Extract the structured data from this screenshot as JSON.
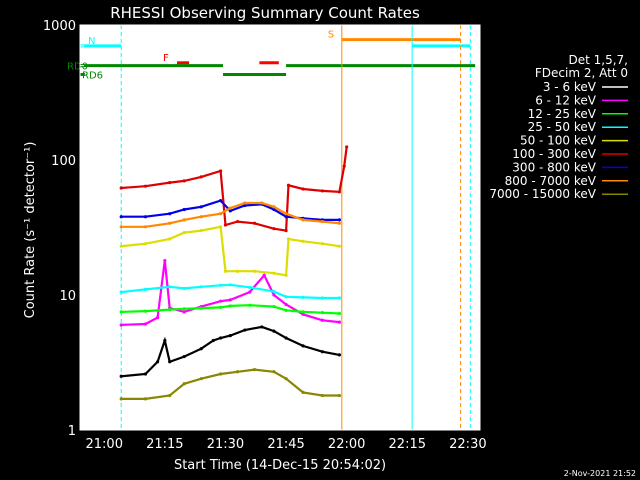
{
  "chart_data": {
    "type": "line",
    "title": "RHESSI Observing Summary Count Rates",
    "xlabel": "Start Time (14-Dec-15 20:54:02)",
    "ylabel": "Count Rate (s⁻¹ detector⁻¹)",
    "yscale": "log",
    "ylim": [
      1,
      1000
    ],
    "xlim_minutes": [
      20.9,
      22.55
    ],
    "x_ticks": [
      {
        "t": 21.0,
        "label": "21:00"
      },
      {
        "t": 21.25,
        "label": "21:15"
      },
      {
        "t": 21.5,
        "label": "21:30"
      },
      {
        "t": 21.75,
        "label": "21:45"
      },
      {
        "t": 22.0,
        "label": "22:00"
      },
      {
        "t": 22.25,
        "label": "22:15"
      },
      {
        "t": 22.5,
        "label": "22:30"
      }
    ],
    "y_ticks": [
      {
        "v": 1,
        "label": "1"
      },
      {
        "v": 10,
        "label": "10"
      },
      {
        "v": 100,
        "label": "100"
      },
      {
        "v": 1000,
        "label": "1000"
      }
    ],
    "legend": {
      "placement": "right",
      "header": [
        "Det 1,5,7,",
        "FDecim 2, Att 0"
      ],
      "entries": [
        {
          "label": "3 - 6 keV",
          "color": "#000000"
        },
        {
          "label": "6 - 12 keV",
          "color": "#ff00ff"
        },
        {
          "label": "12 - 25 keV",
          "color": "#00ff00"
        },
        {
          "label": "25 - 50 keV",
          "color": "#00ffff"
        },
        {
          "label": "50 - 100 keV",
          "color": "#dddd00"
        },
        {
          "label": "100 - 300 keV",
          "color": "#dd0000"
        },
        {
          "label": "300 - 800 keV",
          "color": "#0000ee"
        },
        {
          "label": "800 - 7000 keV",
          "color": "#ff8800"
        },
        {
          "label": "7000 - 15000 keV",
          "color": "#888800"
        }
      ]
    },
    "series": [
      {
        "name": "3 - 6 keV",
        "color": "#000000",
        "points": [
          [
            21.07,
            2.5
          ],
          [
            21.17,
            2.6
          ],
          [
            21.22,
            3.2
          ],
          [
            21.25,
            4.6
          ],
          [
            21.27,
            3.2
          ],
          [
            21.33,
            3.5
          ],
          [
            21.4,
            4.0
          ],
          [
            21.45,
            4.6
          ],
          [
            21.48,
            4.8
          ],
          [
            21.52,
            5.0
          ],
          [
            21.58,
            5.5
          ],
          [
            21.65,
            5.8
          ],
          [
            21.7,
            5.4
          ],
          [
            21.75,
            4.8
          ],
          [
            21.82,
            4.2
          ],
          [
            21.9,
            3.8
          ],
          [
            21.97,
            3.6
          ]
        ]
      },
      {
        "name": "6 - 12 keV",
        "color": "#ff00ff",
        "points": [
          [
            21.07,
            6.0
          ],
          [
            21.17,
            6.1
          ],
          [
            21.22,
            6.8
          ],
          [
            21.25,
            18
          ],
          [
            21.27,
            8.0
          ],
          [
            21.33,
            7.5
          ],
          [
            21.4,
            8.2
          ],
          [
            21.48,
            9.0
          ],
          [
            21.52,
            9.2
          ],
          [
            21.6,
            10.5
          ],
          [
            21.66,
            14
          ],
          [
            21.7,
            10.0
          ],
          [
            21.75,
            8.5
          ],
          [
            21.82,
            7.2
          ],
          [
            21.9,
            6.5
          ],
          [
            21.97,
            6.3
          ]
        ]
      },
      {
        "name": "12 - 25 keV",
        "color": "#00ff00",
        "points": [
          [
            21.07,
            7.5
          ],
          [
            21.17,
            7.6
          ],
          [
            21.27,
            7.8
          ],
          [
            21.33,
            7.9
          ],
          [
            21.4,
            8.0
          ],
          [
            21.48,
            8.1
          ],
          [
            21.52,
            8.3
          ],
          [
            21.6,
            8.4
          ],
          [
            21.7,
            8.2
          ],
          [
            21.75,
            7.7
          ],
          [
            21.82,
            7.5
          ],
          [
            21.9,
            7.4
          ],
          [
            21.97,
            7.3
          ]
        ]
      },
      {
        "name": "25 - 50 keV",
        "color": "#00ffff",
        "points": [
          [
            21.07,
            10.5
          ],
          [
            21.17,
            11.0
          ],
          [
            21.27,
            11.5
          ],
          [
            21.33,
            11.2
          ],
          [
            21.4,
            11.5
          ],
          [
            21.48,
            11.8
          ],
          [
            21.52,
            11.9
          ],
          [
            21.6,
            11.4
          ],
          [
            21.7,
            10.6
          ],
          [
            21.75,
            9.7
          ],
          [
            21.82,
            9.6
          ],
          [
            21.9,
            9.5
          ],
          [
            21.97,
            9.5
          ]
        ]
      },
      {
        "name": "50 - 100 keV",
        "color": "#dddd00",
        "points": [
          [
            21.07,
            23
          ],
          [
            21.17,
            24
          ],
          [
            21.27,
            26
          ],
          [
            21.33,
            29
          ],
          [
            21.4,
            30
          ],
          [
            21.48,
            32
          ],
          [
            21.5,
            15
          ],
          [
            21.55,
            15
          ],
          [
            21.62,
            15
          ],
          [
            21.7,
            14.5
          ],
          [
            21.75,
            14
          ],
          [
            21.76,
            26
          ],
          [
            21.82,
            25
          ],
          [
            21.9,
            24
          ],
          [
            21.97,
            23
          ]
        ]
      },
      {
        "name": "100 - 300 keV",
        "color": "#dd0000",
        "points": [
          [
            21.07,
            62
          ],
          [
            21.17,
            64
          ],
          [
            21.27,
            68
          ],
          [
            21.33,
            70
          ],
          [
            21.4,
            75
          ],
          [
            21.48,
            83
          ],
          [
            21.5,
            33
          ],
          [
            21.55,
            35
          ],
          [
            21.62,
            34
          ],
          [
            21.7,
            31
          ],
          [
            21.75,
            30
          ],
          [
            21.76,
            65
          ],
          [
            21.82,
            61
          ],
          [
            21.9,
            59
          ],
          [
            21.97,
            58
          ],
          [
            21.99,
            90
          ],
          [
            22.0,
            125
          ]
        ]
      },
      {
        "name": "300 - 800 keV",
        "color": "#0000ee",
        "points": [
          [
            21.07,
            38
          ],
          [
            21.17,
            38
          ],
          [
            21.27,
            40
          ],
          [
            21.33,
            43
          ],
          [
            21.4,
            45
          ],
          [
            21.48,
            50
          ],
          [
            21.52,
            42
          ],
          [
            21.58,
            46
          ],
          [
            21.65,
            47
          ],
          [
            21.7,
            43
          ],
          [
            21.75,
            38
          ],
          [
            21.82,
            37
          ],
          [
            21.9,
            36
          ],
          [
            21.97,
            36
          ]
        ]
      },
      {
        "name": "800 - 7000 keV",
        "color": "#ff8800",
        "points": [
          [
            21.07,
            32
          ],
          [
            21.17,
            32
          ],
          [
            21.27,
            34
          ],
          [
            21.33,
            36
          ],
          [
            21.4,
            38
          ],
          [
            21.48,
            40
          ],
          [
            21.52,
            44
          ],
          [
            21.58,
            48
          ],
          [
            21.65,
            48
          ],
          [
            21.7,
            45
          ],
          [
            21.75,
            40
          ],
          [
            21.82,
            36
          ],
          [
            21.9,
            35
          ],
          [
            21.97,
            34
          ]
        ]
      },
      {
        "name": "7000 - 15000 keV",
        "color": "#888800",
        "points": [
          [
            21.07,
            1.7
          ],
          [
            21.17,
            1.7
          ],
          [
            21.27,
            1.8
          ],
          [
            21.33,
            2.2
          ],
          [
            21.4,
            2.4
          ],
          [
            21.48,
            2.6
          ],
          [
            21.55,
            2.7
          ],
          [
            21.62,
            2.8
          ],
          [
            21.7,
            2.7
          ],
          [
            21.75,
            2.4
          ],
          [
            21.82,
            1.9
          ],
          [
            21.9,
            1.8
          ],
          [
            21.97,
            1.8
          ]
        ]
      }
    ],
    "flag_bars": [
      {
        "label": "N",
        "color": "#00ffff",
        "y": 700,
        "segments": [
          [
            20.9,
            21.07
          ],
          [
            22.27,
            22.51
          ]
        ]
      },
      {
        "label": "F",
        "color": "#ff0000",
        "y": 525,
        "segments": [
          [
            21.3,
            21.35
          ],
          [
            21.64,
            21.72
          ]
        ]
      },
      {
        "label": "S",
        "color": "#ff8800",
        "y": 780,
        "segments": [
          [
            21.98,
            22.47
          ]
        ]
      },
      {
        "label": "RD0",
        "color": "#008800",
        "y": 500,
        "segments": [
          [
            20.9,
            21.49
          ],
          [
            21.75,
            22.53
          ]
        ]
      },
      {
        "label": "RD6",
        "color": "#008800",
        "y": 430,
        "segments": [
          [
            20.9,
            20.92
          ],
          [
            21.49,
            21.75
          ]
        ]
      }
    ],
    "vlines": [
      {
        "t": 20.9,
        "color": "#00ffff",
        "style": "solid"
      },
      {
        "t": 21.07,
        "color": "#00ffff",
        "style": "dashed"
      },
      {
        "t": 21.98,
        "color": "#ff8800",
        "style": "solid"
      },
      {
        "t": 22.27,
        "color": "#00ffff",
        "style": "solid"
      },
      {
        "t": 22.47,
        "color": "#ff8800",
        "style": "dashed"
      },
      {
        "t": 22.51,
        "color": "#00ffff",
        "style": "dashed"
      }
    ]
  },
  "footer": {
    "date": "2-Nov-2021 21:52"
  }
}
